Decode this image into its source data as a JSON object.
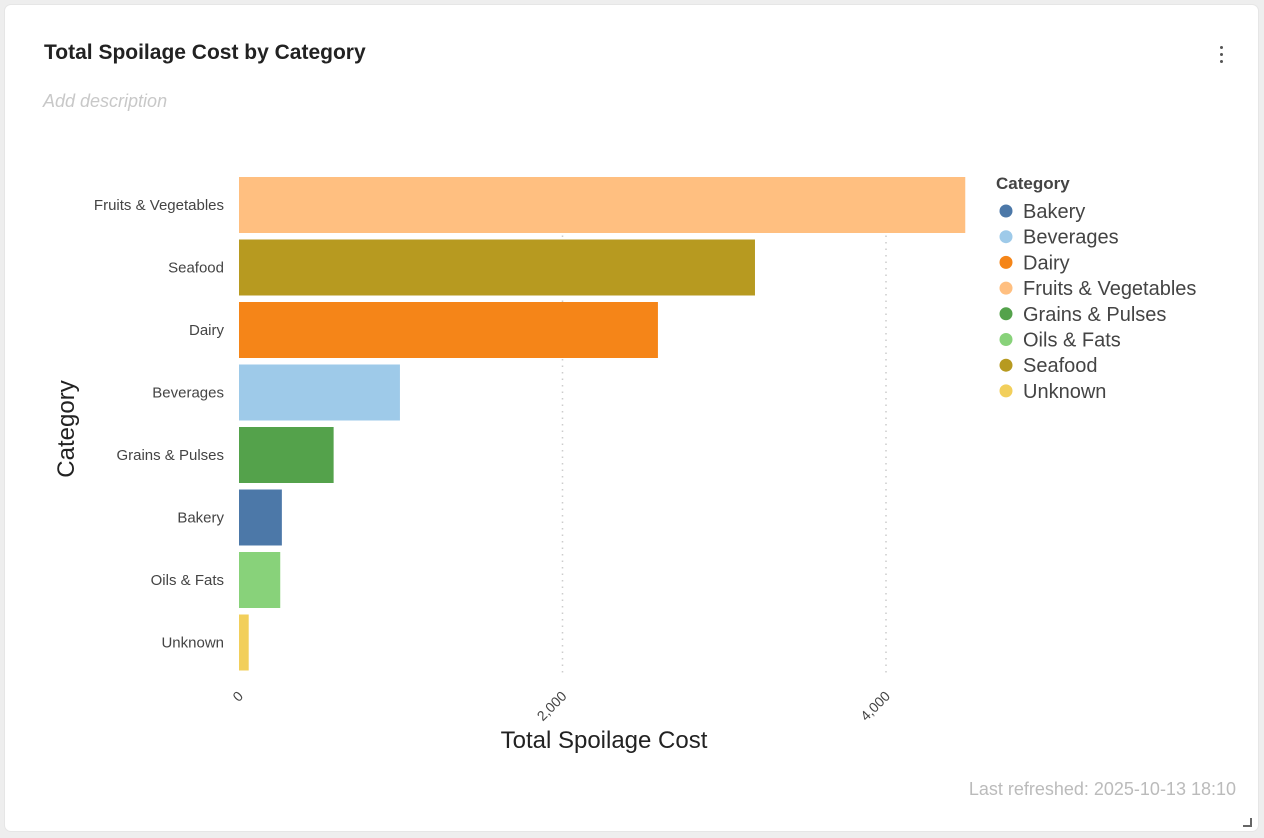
{
  "card": {
    "title": "Total Spoilage Cost by Category",
    "description_placeholder": "Add description",
    "menu_icon": "kebab-menu-icon",
    "last_refreshed": "Last refreshed: 2025-10-13 18:10",
    "resize_icon": "resize-handle-icon"
  },
  "chart_data": {
    "type": "bar",
    "orientation": "horizontal",
    "title": "Total Spoilage Cost by Category",
    "xlabel": "Total Spoilage Cost",
    "ylabel": "Category",
    "xlim": [
      0,
      4500
    ],
    "xticks": [
      0,
      2000,
      4000
    ],
    "xtick_labels": [
      "0",
      "2,000",
      "4,000"
    ],
    "grid": "vertical dotted",
    "categories": [
      "Fruits & Vegetables",
      "Seafood",
      "Dairy",
      "Beverages",
      "Grains & Pulses",
      "Bakery",
      "Oils & Fats",
      "Unknown"
    ],
    "values": [
      4490,
      3190,
      2590,
      995,
      585,
      265,
      255,
      60
    ],
    "bar_colors": [
      "#ffbf80",
      "#b79a20",
      "#f58518",
      "#9ecae9",
      "#54a24b",
      "#4c78a8",
      "#88d27a",
      "#f2cf5b"
    ],
    "legend": {
      "title": "Category",
      "position": "right",
      "items": [
        {
          "label": "Bakery",
          "color": "#4c78a8"
        },
        {
          "label": "Beverages",
          "color": "#9ecae9"
        },
        {
          "label": "Dairy",
          "color": "#f58518"
        },
        {
          "label": "Fruits & Vegetables",
          "color": "#ffbf80"
        },
        {
          "label": "Grains & Pulses",
          "color": "#54a24b"
        },
        {
          "label": "Oils & Fats",
          "color": "#88d27a"
        },
        {
          "label": "Seafood",
          "color": "#b79a20"
        },
        {
          "label": "Unknown",
          "color": "#f2cf5b"
        }
      ]
    }
  }
}
